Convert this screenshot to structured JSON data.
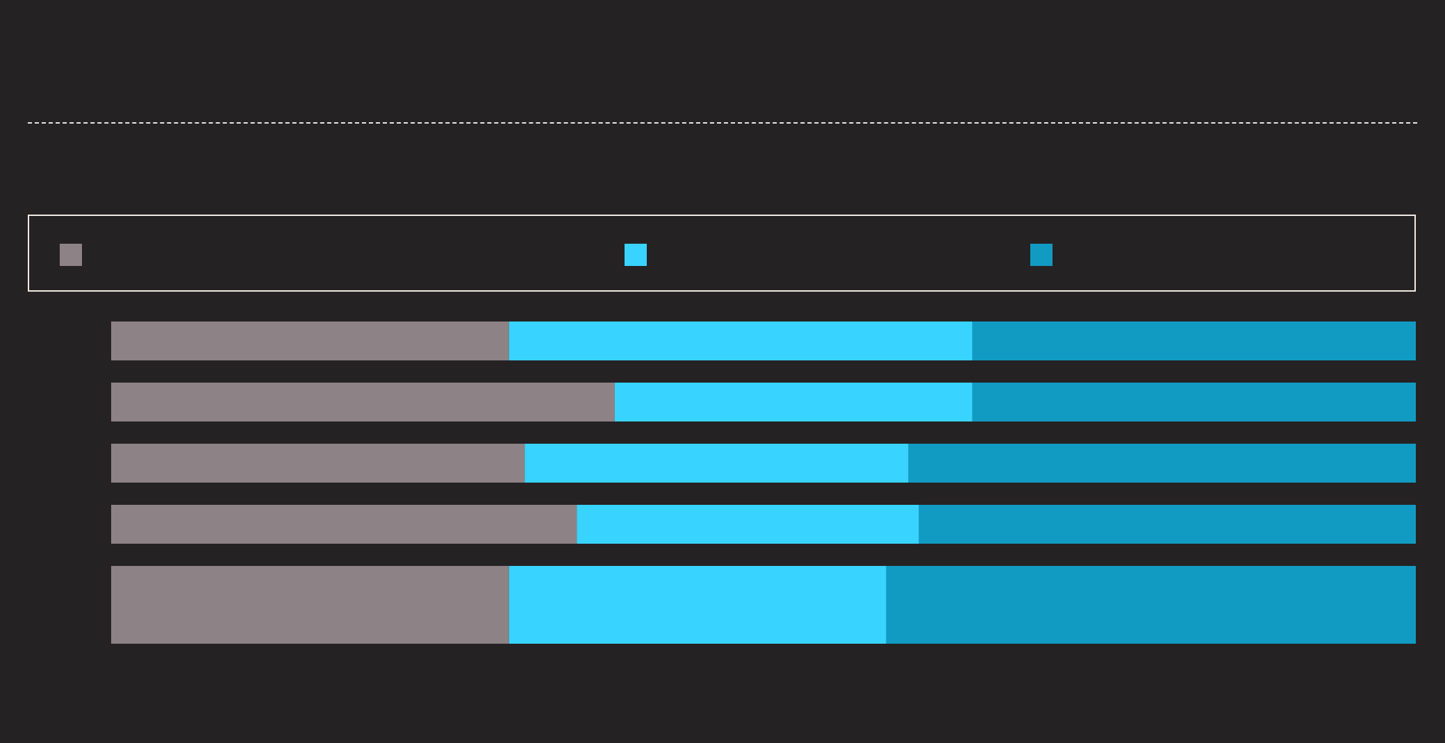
{
  "chart_data": {
    "type": "bar",
    "orientation": "horizontal",
    "stacked": true,
    "normalized": true,
    "title": "",
    "xlabel": "",
    "ylabel": "",
    "xlim": [
      0,
      100
    ],
    "grid": false,
    "legend_position": "top",
    "categories": [
      "",
      "",
      "",
      "",
      ""
    ],
    "series": [
      {
        "name": "",
        "color": "#8d8286",
        "values": [
          30.5,
          38.6,
          31.7,
          35.7,
          30.5
        ]
      },
      {
        "name": "",
        "color": "#38d4ff",
        "values": [
          35.5,
          27.4,
          29.4,
          26.2,
          28.9
        ]
      },
      {
        "name": "",
        "color": "#129bc2",
        "values": [
          34.0,
          34.0,
          38.9,
          38.1,
          40.6
        ]
      }
    ]
  }
}
